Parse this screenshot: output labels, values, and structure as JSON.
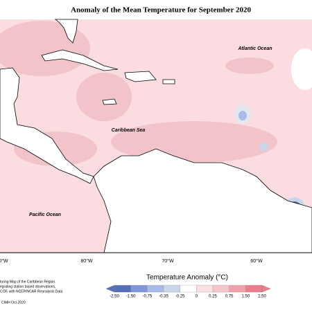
{
  "title": "Anomaly of the Mean Temperature for September 2020",
  "labels": {
    "atlantic": "Atlantic Ocean",
    "caribbean": "Caribbean Sea",
    "pacific": "Pacific Ocean"
  },
  "longitudes": [
    "0°W",
    "80°W",
    "70°W",
    "60°W"
  ],
  "legend": {
    "title": "Temperature Anomaly (°C)",
    "labels": [
      "-2.50",
      "-1.50",
      "-0.75",
      "-0.35",
      "-0.25",
      "0",
      "0.25",
      "0.75",
      "1.50",
      "2.50"
    ],
    "colors": [
      "#5670b8",
      "#7f96d8",
      "#a9bbe8",
      "#c9d6ea",
      "#e2e8ee",
      "#ffffff",
      "#fbe0e3",
      "#f5c5cb",
      "#f0a2ab",
      "#ec7f8b"
    ]
  },
  "footnote": [
    "toring Map of the Caribbean Region.",
    "egrating station based observations,",
    "COF, with NCEP/NCAR Reanalysis Data"
  ],
  "credit": "CIMH Oct-2020"
}
